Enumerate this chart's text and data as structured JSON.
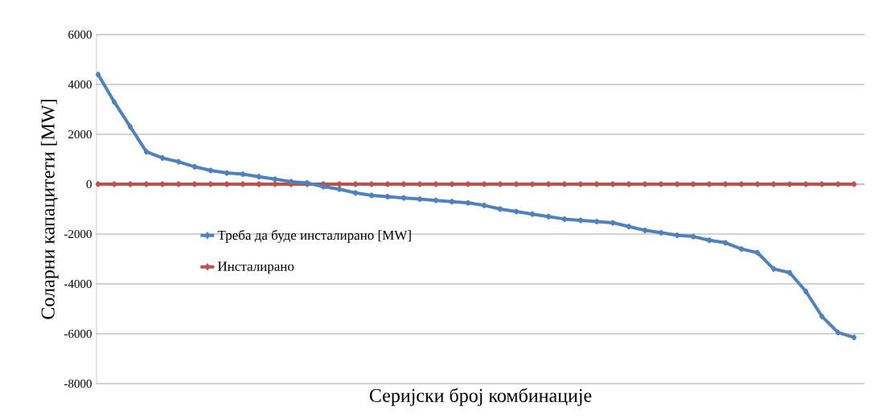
{
  "chart_data": {
    "type": "line",
    "xlabel": "Серијски број комбинације",
    "ylabel": "Соларни капацитети [MW]",
    "categories": [
      null,
      null,
      null,
      null,
      null,
      null,
      null,
      null,
      null,
      null,
      null,
      null,
      null,
      null,
      null,
      null,
      null,
      null,
      null,
      null,
      null,
      null,
      null,
      null,
      null,
      null,
      null,
      null,
      null,
      null,
      null,
      null,
      null,
      null,
      null,
      null,
      null,
      null,
      null,
      null,
      null,
      null,
      null,
      null,
      null,
      null,
      null,
      null
    ],
    "series": [
      {
        "name": "Треба да буде инсталирано [MW]",
        "color": "#4f81bd",
        "values": [
          4400,
          3300,
          2300,
          1300,
          1050,
          900,
          700,
          550,
          450,
          400,
          300,
          200,
          100,
          50,
          -100,
          -200,
          -350,
          -450,
          -500,
          -550,
          -600,
          -650,
          -700,
          -750,
          -850,
          -1000,
          -1100,
          -1200,
          -1300,
          -1400,
          -1450,
          -1500,
          -1550,
          -1700,
          -1850,
          -1950,
          -2050,
          -2100,
          -2250,
          -2350,
          -2600,
          -2750,
          -3400,
          -3550,
          -4300,
          -5300,
          -5950,
          -6150
        ]
      },
      {
        "name": "Инсталирано",
        "color": "#c0504d",
        "values": [
          0,
          0,
          0,
          0,
          0,
          0,
          0,
          0,
          0,
          0,
          0,
          0,
          0,
          0,
          0,
          0,
          0,
          0,
          0,
          0,
          0,
          0,
          0,
          0,
          0,
          0,
          0,
          0,
          0,
          0,
          0,
          0,
          0,
          0,
          0,
          0,
          0,
          0,
          0,
          0,
          0,
          0,
          0,
          0,
          0,
          0,
          0,
          0
        ]
      }
    ],
    "ylim": [
      -8000,
      6000
    ],
    "yticks": [
      -8000,
      -6000,
      -4000,
      -2000,
      0,
      2000,
      4000,
      6000
    ],
    "grid": "y",
    "legend": "left",
    "marker": "diamond",
    "tick_labels": "y"
  }
}
